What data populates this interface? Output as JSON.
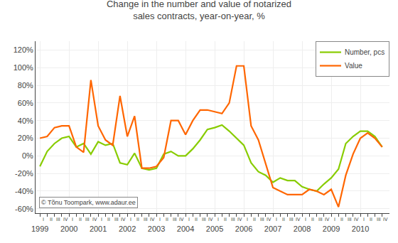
{
  "chart_data": {
    "type": "line",
    "title": "Change in the number and value of notarized\nsales contracts, year-on-year, %",
    "x": [
      1999,
      1999.25,
      1999.5,
      1999.75,
      2000,
      2000.25,
      2000.5,
      2000.75,
      2001,
      2001.25,
      2001.5,
      2001.75,
      2002,
      2002.25,
      2002.5,
      2002.75,
      2003,
      2003.25,
      2003.5,
      2003.75,
      2004,
      2004.25,
      2004.5,
      2004.75,
      2005,
      2005.25,
      2005.5,
      2005.75,
      2006,
      2006.25,
      2006.5,
      2006.75,
      2007,
      2007.25,
      2007.5,
      2007.75,
      2008,
      2008.25,
      2008.5,
      2008.75,
      2009,
      2009.25,
      2009.5,
      2009.75,
      2010,
      2010.25,
      2010.5,
      2010.75
    ],
    "series": [
      {
        "name": "Number, pcs",
        "color": "#88cc00",
        "values": [
          -12,
          5,
          14,
          20,
          22,
          10,
          14,
          2,
          16,
          12,
          14,
          -8,
          -10,
          3,
          -14,
          -16,
          -14,
          2,
          5,
          0,
          0,
          8,
          18,
          30,
          32,
          35,
          28,
          20,
          12,
          -8,
          -18,
          -22,
          -30,
          -25,
          -28,
          -28,
          -35,
          -38,
          -40,
          -32,
          -25,
          -15,
          14,
          22,
          28,
          28,
          22,
          10
        ]
      },
      {
        "name": "Value",
        "color": "#ff6600",
        "values": [
          20,
          22,
          32,
          34,
          34,
          10,
          4,
          86,
          34,
          18,
          12,
          68,
          22,
          45,
          -14,
          -14,
          -12,
          -2,
          40,
          40,
          24,
          40,
          52,
          52,
          50,
          48,
          60,
          102,
          102,
          34,
          18,
          -8,
          -36,
          -40,
          -44,
          -44,
          -44,
          -38,
          -40,
          -44,
          -38,
          -58,
          -22,
          2,
          20,
          26,
          20,
          10
        ]
      }
    ],
    "xlim": [
      1998.85,
      2011
    ],
    "xticks": [
      1999,
      2000,
      2001,
      2002,
      2003,
      2004,
      2005,
      2006,
      2007,
      2008,
      2009,
      2010
    ],
    "ylim": [
      -65,
      130
    ],
    "yticks": [
      {
        "value": -60,
        "label": "-60%"
      },
      {
        "value": -40,
        "label": "-40%"
      },
      {
        "value": -20,
        "label": "-20%"
      },
      {
        "value": 0,
        "label": "0%"
      },
      {
        "value": 20,
        "label": "20%"
      },
      {
        "value": 40,
        "label": "40%"
      },
      {
        "value": 60,
        "label": "60%"
      },
      {
        "value": 80,
        "label": "80%"
      },
      {
        "value": 100,
        "label": "100%"
      },
      {
        "value": 120,
        "label": "120%"
      }
    ],
    "grid": true,
    "legend": "upper right",
    "annotations": [
      {
        "text": "© Tõnu Toompark, www.adaur.ee"
      },
      {
        "x": 1999.125,
        "text": "I"
      },
      {
        "x": 1999.375,
        "text": "II"
      },
      {
        "x": 1999.625,
        "text": "III"
      },
      {
        "x": 1999.875,
        "text": "IV"
      },
      {
        "x": 2000.125,
        "text": "I"
      },
      {
        "x": 2000.375,
        "text": "II"
      },
      {
        "x": 2000.625,
        "text": "III"
      },
      {
        "x": 2000.875,
        "text": "IV"
      },
      {
        "x": 2001.125,
        "text": "I"
      },
      {
        "x": 2001.375,
        "text": "II"
      },
      {
        "x": 2001.625,
        "text": "III"
      },
      {
        "x": 2001.875,
        "text": "IV"
      },
      {
        "x": 2002.125,
        "text": "I"
      },
      {
        "x": 2002.375,
        "text": "II"
      },
      {
        "x": 2002.625,
        "text": "III"
      },
      {
        "x": 2002.875,
        "text": "IV"
      },
      {
        "x": 2003.125,
        "text": "I"
      },
      {
        "x": 2003.375,
        "text": "II"
      },
      {
        "x": 2003.625,
        "text": "III"
      },
      {
        "x": 2003.875,
        "text": "IV"
      },
      {
        "x": 2004.125,
        "text": "I"
      },
      {
        "x": 2004.375,
        "text": "II"
      },
      {
        "x": 2004.625,
        "text": "III"
      },
      {
        "x": 2004.875,
        "text": "IV"
      },
      {
        "x": 2005.125,
        "text": "I"
      },
      {
        "x": 2005.375,
        "text": "II"
      },
      {
        "x": 2005.625,
        "text": "III"
      },
      {
        "x": 2005.875,
        "text": "IV"
      },
      {
        "x": 2006.125,
        "text": "I"
      },
      {
        "x": 2006.375,
        "text": "II"
      },
      {
        "x": 2006.625,
        "text": "III"
      },
      {
        "x": 2006.875,
        "text": "IV"
      },
      {
        "x": 2007.125,
        "text": "I"
      },
      {
        "x": 2007.375,
        "text": "II"
      },
      {
        "x": 2007.625,
        "text": "III"
      },
      {
        "x": 2007.875,
        "text": "IV"
      },
      {
        "x": 2008.125,
        "text": "I"
      },
      {
        "x": 2008.375,
        "text": "II"
      },
      {
        "x": 2008.625,
        "text": "III"
      },
      {
        "x": 2008.875,
        "text": "IV"
      },
      {
        "x": 2009.125,
        "text": "I"
      },
      {
        "x": 2009.375,
        "text": "II"
      },
      {
        "x": 2009.625,
        "text": "III"
      },
      {
        "x": 2009.875,
        "text": "IV"
      },
      {
        "x": 2010.125,
        "text": "I"
      },
      {
        "x": 2010.375,
        "text": "II"
      },
      {
        "x": 2010.625,
        "text": "III"
      },
      {
        "x": 2010.875,
        "text": "IV"
      }
    ]
  }
}
